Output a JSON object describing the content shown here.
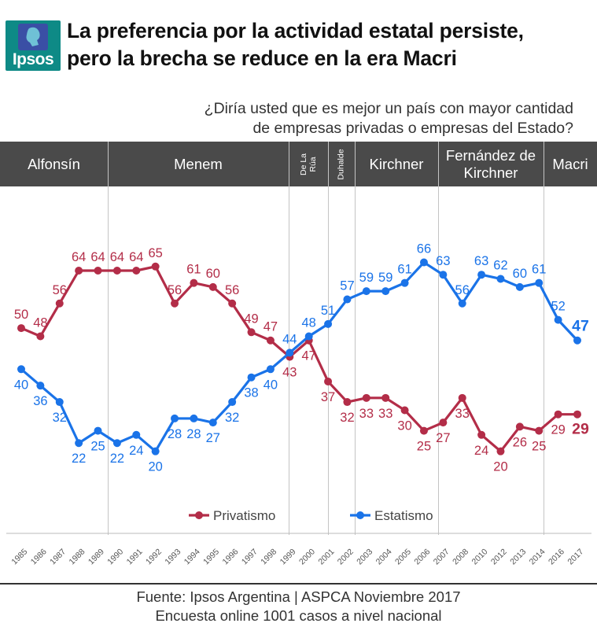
{
  "header": {
    "logo_text": "Ipsos",
    "brand_color": "#0e8a86",
    "title_line1": "La preferencia por la actividad estatal persiste,",
    "title_line2": "pero la brecha se reduce en la era Macri"
  },
  "question": {
    "line1": "¿Diría usted que es mejor un país con mayor cantidad",
    "line2": "de empresas privadas  o empresas del Estado?"
  },
  "eras": [
    {
      "label": "Alfonsín"
    },
    {
      "label": "Menem"
    },
    {
      "label": "De La\nRúa"
    },
    {
      "label": "Duhalde"
    },
    {
      "label": "Kirchner"
    },
    {
      "label": "Fernández de Kirchner"
    },
    {
      "label": "Macri"
    }
  ],
  "chart_data": {
    "type": "line",
    "title": "¿Diría usted que es mejor un país con mayor cantidad de empresas privadas o empresas del Estado?",
    "categories": [
      "1985",
      "1986",
      "1987",
      "1988",
      "1989",
      "1990",
      "1991",
      "1992",
      "1993",
      "1994",
      "1995",
      "1996",
      "1997",
      "1998",
      "1999",
      "2000",
      "2001",
      "2002",
      "2003",
      "2004",
      "2005",
      "2006",
      "2007",
      "2008",
      "2010",
      "2012",
      "2013",
      "2014",
      "2016",
      "2017"
    ],
    "series": [
      {
        "name": "Privatismo",
        "color": "#b32d48",
        "values": [
          50,
          48,
          56,
          64,
          64,
          64,
          64,
          65,
          56,
          61,
          60,
          56,
          49,
          47,
          43,
          47,
          37,
          32,
          33,
          33,
          30,
          25,
          27,
          33,
          24,
          20,
          26,
          25,
          29,
          29
        ]
      },
      {
        "name": "Estatismo",
        "color": "#1a73e8",
        "values": [
          40,
          36,
          32,
          22,
          25,
          22,
          24,
          20,
          28,
          28,
          27,
          32,
          38,
          40,
          44,
          48,
          51,
          57,
          59,
          59,
          61,
          66,
          63,
          56,
          63,
          62,
          60,
          61,
          52,
          47
        ]
      }
    ],
    "legend": "bottom-center"
  },
  "footer": {
    "line1": "Fuente: Ipsos Argentina | ASPCA Noviembre 2017",
    "line2": "Encuesta online 1001 casos a nivel nacional"
  }
}
